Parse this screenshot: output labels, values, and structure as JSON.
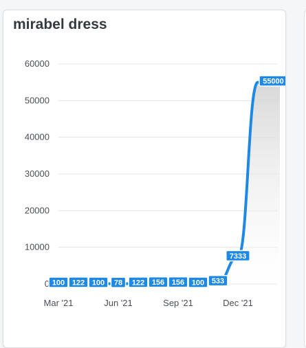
{
  "card": {
    "title": "mirabel dress"
  },
  "colors": {
    "line": "#1e88e5",
    "area_top": "#d6d6d6",
    "grid": "#e3e3e3"
  },
  "chart_data": {
    "type": "area",
    "title": "mirabel dress",
    "xlabel": "",
    "ylabel": "",
    "ylim": [
      0,
      60000
    ],
    "y_ticks": [
      0,
      10000,
      20000,
      30000,
      40000,
      50000,
      60000
    ],
    "x_tick_labels": [
      "Mar '21",
      "Jun '21",
      "Sep '21",
      "Dec '21"
    ],
    "x_tick_indices": [
      0,
      3,
      6,
      9
    ],
    "grid": true,
    "legend": "none",
    "series": [
      {
        "values": [
          100,
          122,
          100,
          78,
          122,
          156,
          156,
          100,
          533,
          7333,
          55000
        ],
        "labels": [
          "100",
          "122",
          "100",
          "78",
          "122",
          "156",
          "156",
          "100",
          "533",
          "7333",
          "55000"
        ]
      }
    ]
  }
}
